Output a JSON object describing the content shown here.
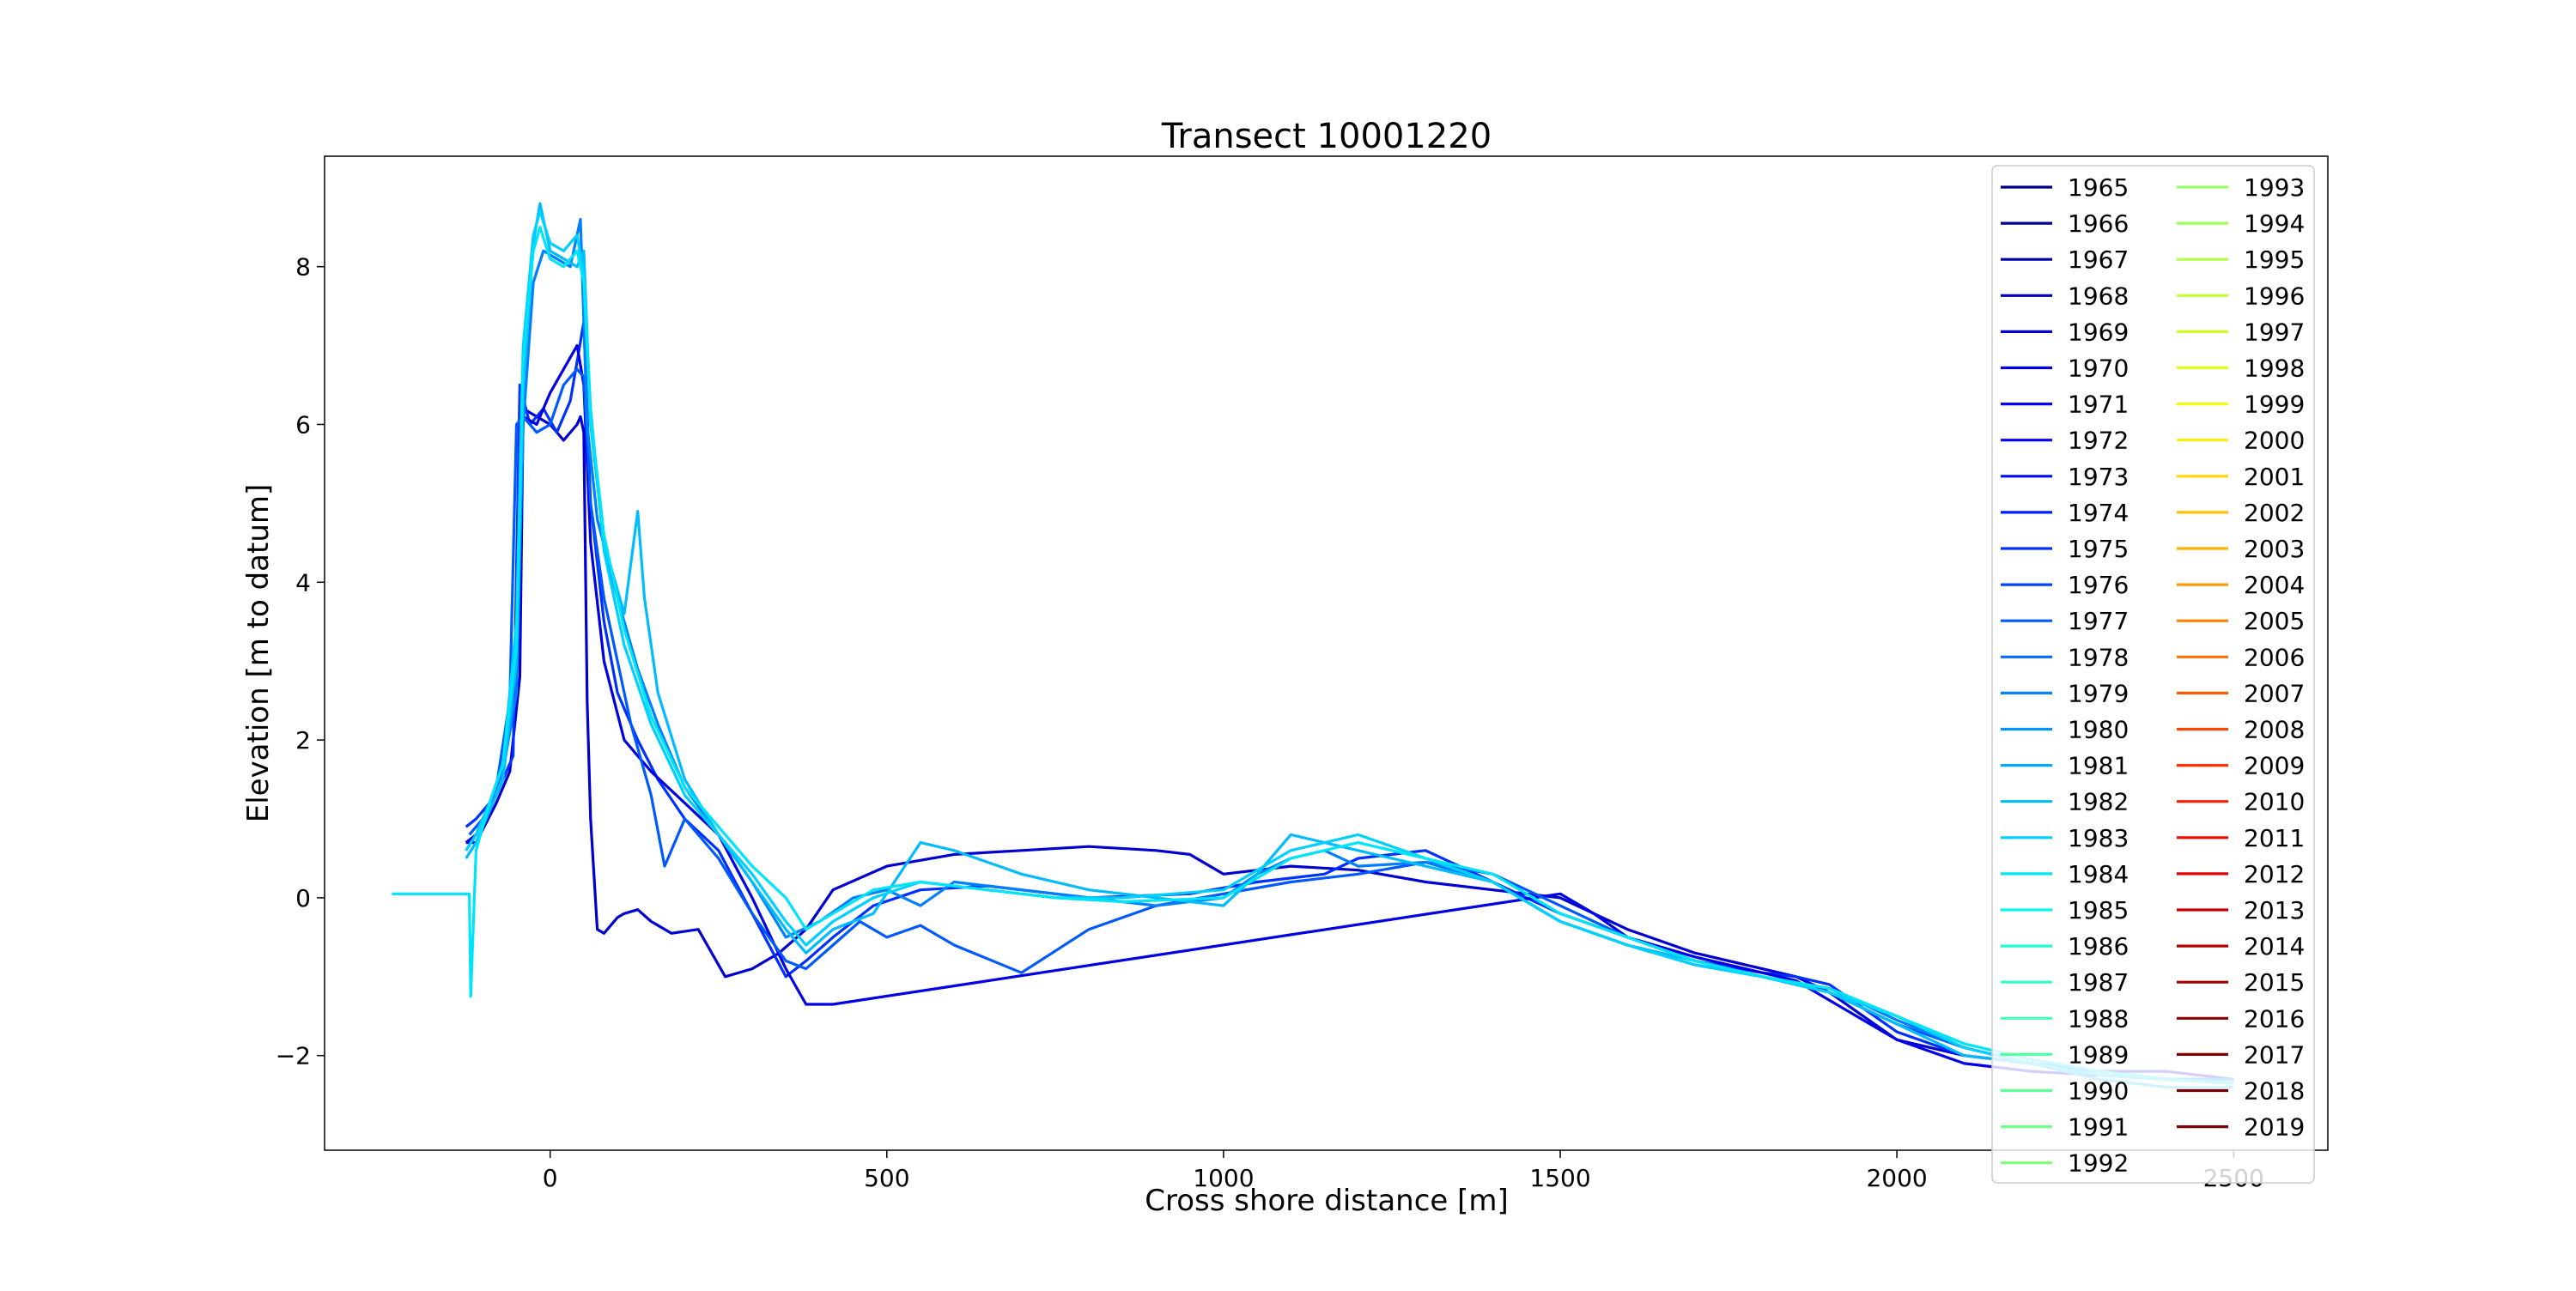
{
  "chart_data": {
    "type": "line",
    "title": "Transect 10001220",
    "xlabel": "Cross shore distance [m]",
    "ylabel": "Elevation [m to datum]",
    "xlim": [
      -335,
      2640
    ],
    "ylim": [
      -3.2,
      9.4
    ],
    "xticks": [
      0,
      500,
      1000,
      1500,
      2000,
      2500
    ],
    "yticks": [
      -2,
      0,
      2,
      4,
      6,
      8
    ],
    "xtick_labels": [
      "0",
      "500",
      "1000",
      "1500",
      "2000",
      "2500"
    ],
    "ytick_labels": [
      "−2",
      "0",
      "2",
      "4",
      "6",
      "8"
    ],
    "grid": false,
    "legend_placement": "upper right",
    "legend_columns": 2,
    "colormap": "jet",
    "legend_years": [
      "1965",
      "1966",
      "1967",
      "1968",
      "1969",
      "1970",
      "1971",
      "1972",
      "1973",
      "1974",
      "1975",
      "1976",
      "1977",
      "1978",
      "1979",
      "1980",
      "1981",
      "1982",
      "1983",
      "1984",
      "1985",
      "1986",
      "1987",
      "1988",
      "1989",
      "1990",
      "1991",
      "1992",
      "1993",
      "1994",
      "1995",
      "1996",
      "1997",
      "1998",
      "1999",
      "2000",
      "2001",
      "2002",
      "2003",
      "2004",
      "2005",
      "2006",
      "2007",
      "2008",
      "2009",
      "2010",
      "2011",
      "2012",
      "2013",
      "2014",
      "2015",
      "2016",
      "2017",
      "2018",
      "2019"
    ],
    "legend_colors": [
      "#00007f",
      "#000093",
      "#0000a7",
      "#0000bb",
      "#0000d0",
      "#0000e4",
      "#0000f8",
      "#0000ff",
      "#0008ff",
      "#001cff",
      "#0030ff",
      "#0044ff",
      "#0058ff",
      "#006cff",
      "#0080ff",
      "#0094ff",
      "#00a8ff",
      "#00bcff",
      "#00d0ff",
      "#00e4f7",
      "#0ff8e7",
      "#22ffd4",
      "#32ffc4",
      "#42ffb4",
      "#51ffa5",
      "#61ff95",
      "#71ff85",
      "#82ff75",
      "#92ff64",
      "#a1ff55",
      "#b1ff45",
      "#c1ff35",
      "#d0ff26",
      "#e0ff16",
      "#f0ff06",
      "#ffee00",
      "#ffd900",
      "#ffc400",
      "#ffb000",
      "#ff9a00",
      "#ff8500",
      "#ff7000",
      "#ff5c00",
      "#ff4700",
      "#ff3200",
      "#ff1e00",
      "#f10900",
      "#dd0000",
      "#c80000",
      "#b40000",
      "#a00000",
      "#8b0000",
      "#7f0000",
      "#750000",
      "#7f0000"
    ],
    "series": [
      {
        "color": "#0000d0",
        "x": [
          -125,
          -110,
          -80,
          -60,
          -45,
          -40,
          -20,
          0,
          20,
          40,
          45,
          50,
          55,
          60,
          70,
          80,
          90,
          100,
          110,
          130,
          150,
          180,
          220,
          260,
          300,
          340,
          380,
          420,
          500,
          600,
          700,
          800,
          900,
          950,
          1000,
          1100,
          1200,
          1300,
          1400,
          1500,
          1550,
          1600,
          1700,
          1800,
          1850,
          1900,
          1950,
          2000,
          2100,
          2200,
          2300,
          2400,
          2500
        ],
        "y": [
          0.7,
          0.7,
          1.2,
          1.6,
          2.8,
          6.2,
          6.1,
          6.0,
          5.8,
          6.0,
          6.1,
          5.9,
          2.5,
          1.0,
          -0.4,
          -0.45,
          -0.35,
          -0.25,
          -0.2,
          -0.15,
          -0.3,
          -0.45,
          -0.4,
          -1.0,
          -0.9,
          -0.7,
          -0.4,
          0.1,
          0.4,
          0.55,
          0.6,
          0.65,
          0.6,
          0.55,
          0.3,
          0.4,
          0.35,
          0.2,
          0.1,
          0.0,
          -0.2,
          -0.4,
          -0.7,
          -0.9,
          -1.0,
          -1.2,
          -1.5,
          -1.8,
          -2.0,
          -2.1,
          -2.2,
          -2.2,
          -2.3
        ]
      },
      {
        "color": "#0030ff",
        "x": [
          -125,
          -110,
          -80,
          -55,
          -45,
          -30,
          -10,
          10,
          30,
          40,
          50,
          60,
          80,
          100,
          130,
          160,
          200,
          250,
          300,
          350,
          380,
          420,
          480,
          550,
          650,
          800,
          950,
          1050,
          1150,
          1200,
          1300,
          1350,
          1400,
          1450,
          1500,
          1600,
          1700,
          1800,
          1850,
          1900,
          1950,
          2000,
          2100,
          2200,
          2300,
          2400,
          2500
        ],
        "y": [
          0.9,
          1.0,
          1.3,
          1.8,
          6.5,
          6.0,
          6.2,
          5.9,
          6.3,
          6.8,
          7.3,
          5.0,
          3.5,
          2.6,
          2.0,
          1.5,
          1.0,
          0.6,
          -0.2,
          -1.0,
          -0.8,
          -0.5,
          -0.1,
          0.1,
          0.15,
          0.0,
          0.05,
          0.2,
          0.3,
          0.5,
          0.6,
          0.4,
          0.2,
          0.0,
          -0.2,
          -0.5,
          -0.8,
          -0.95,
          -1.0,
          -1.1,
          -1.4,
          -1.7,
          -2.0,
          -2.1,
          -2.2,
          -2.3,
          -2.3
        ]
      },
      {
        "color": "#0000e4",
        "x": [
          -125,
          -110,
          -90,
          -70,
          -50,
          -40,
          -20,
          0,
          20,
          40,
          50,
          60,
          80,
          110,
          150,
          200,
          250,
          300,
          350,
          380,
          420,
          1500,
          1550,
          1600,
          1700,
          1800,
          1850,
          1900,
          2000,
          2100,
          2200,
          2300,
          2400,
          2500
        ],
        "y": [
          0.7,
          0.8,
          1.2,
          1.6,
          3.0,
          6.1,
          6.0,
          6.4,
          6.7,
          7.0,
          6.5,
          4.5,
          3.0,
          2.0,
          1.6,
          1.2,
          0.8,
          0.0,
          -0.9,
          -1.35,
          -1.35,
          0.05,
          -0.2,
          -0.5,
          -0.75,
          -0.95,
          -1.05,
          -1.3,
          -1.8,
          -2.1,
          -2.2,
          -2.25,
          -2.3,
          -2.35
        ]
      },
      {
        "color": "#0058ff",
        "x": [
          -120,
          -100,
          -80,
          -60,
          -50,
          -40,
          -20,
          0,
          20,
          40,
          50,
          60,
          80,
          100,
          120,
          150,
          170,
          200,
          250,
          300,
          350,
          380,
          420,
          460,
          500,
          550,
          600,
          700,
          800,
          900,
          1000,
          1100,
          1200,
          1300,
          1400,
          1500,
          1600,
          1700,
          1800,
          1900,
          2000,
          2100,
          2200,
          2300,
          2400,
          2500
        ],
        "y": [
          0.8,
          1.0,
          1.4,
          2.5,
          6.0,
          6.1,
          5.9,
          6.0,
          6.5,
          6.7,
          6.6,
          5.0,
          3.8,
          3.0,
          2.2,
          1.3,
          0.4,
          1.0,
          0.5,
          -0.2,
          -0.8,
          -0.9,
          -0.6,
          -0.3,
          -0.5,
          -0.35,
          -0.6,
          -0.95,
          -0.4,
          -0.1,
          0.05,
          0.2,
          0.3,
          0.45,
          0.3,
          -0.1,
          -0.5,
          -0.8,
          -1.0,
          -1.2,
          -1.6,
          -1.9,
          -2.1,
          -2.2,
          -2.3,
          -2.3
        ]
      },
      {
        "color": "#0080ff",
        "x": [
          -125,
          -110,
          -90,
          -70,
          -50,
          -40,
          -25,
          -10,
          10,
          30,
          45,
          55,
          70,
          100,
          130,
          160,
          200,
          250,
          300,
          350,
          400,
          450,
          500,
          550,
          600,
          700,
          800,
          900,
          1000,
          1050,
          1100,
          1150,
          1200,
          1300,
          1400,
          1500,
          1600,
          1700,
          1800,
          1900,
          2000,
          2100,
          2200,
          2300,
          2400,
          2500
        ],
        "y": [
          0.6,
          0.8,
          1.2,
          1.6,
          2.6,
          6.0,
          7.8,
          8.2,
          8.1,
          8.0,
          8.6,
          6.0,
          4.8,
          3.8,
          2.9,
          2.2,
          1.4,
          0.8,
          0.2,
          -0.5,
          -0.3,
          0.0,
          0.1,
          -0.1,
          0.2,
          0.1,
          0.0,
          -0.1,
          0.0,
          0.3,
          0.5,
          0.6,
          0.4,
          0.45,
          0.2,
          -0.3,
          -0.6,
          -0.85,
          -1.0,
          -1.15,
          -1.55,
          -1.9,
          -2.1,
          -2.2,
          -2.3,
          -2.3
        ]
      },
      {
        "color": "#00bcff",
        "x": [
          -125,
          -110,
          -90,
          -70,
          -50,
          -40,
          -25,
          -15,
          0,
          20,
          40,
          50,
          60,
          80,
          110,
          130,
          140,
          160,
          200,
          250,
          300,
          350,
          380,
          420,
          480,
          550,
          600,
          700,
          800,
          900,
          1000,
          1050,
          1100,
          1150,
          1200,
          1250,
          1300,
          1350,
          1400,
          1500,
          1600,
          1700,
          1800,
          1900,
          2000,
          2100,
          2200,
          2300,
          2400,
          2500
        ],
        "y": [
          0.5,
          0.7,
          1.1,
          1.5,
          3.0,
          6.5,
          8.3,
          8.8,
          8.2,
          8.1,
          8.0,
          8.2,
          6.0,
          4.5,
          3.6,
          4.9,
          3.8,
          2.6,
          1.5,
          0.8,
          0.2,
          -0.4,
          -0.7,
          -0.4,
          -0.2,
          0.7,
          0.6,
          0.3,
          0.1,
          0.0,
          -0.1,
          0.3,
          0.8,
          0.7,
          0.6,
          0.5,
          0.4,
          0.3,
          0.2,
          -0.3,
          -0.6,
          -0.8,
          -1.0,
          -1.2,
          -1.6,
          -2.0,
          -2.1,
          -2.3,
          -2.4,
          -2.4
        ]
      },
      {
        "color": "#00d0ff",
        "x": [
          -125,
          -110,
          -90,
          -70,
          -50,
          -40,
          -25,
          -15,
          0,
          20,
          40,
          50,
          60,
          80,
          110,
          150,
          200,
          250,
          300,
          350,
          380,
          420,
          480,
          550,
          650,
          750,
          850,
          1000,
          1100,
          1200,
          1300,
          1400,
          1500,
          1600,
          1700,
          1800,
          1900,
          2000,
          2100,
          2200,
          2300,
          2400,
          2500
        ],
        "y": [
          0.6,
          0.8,
          1.2,
          1.7,
          3.5,
          7.0,
          8.4,
          8.7,
          8.3,
          8.2,
          8.4,
          7.9,
          6.2,
          4.4,
          3.2,
          2.2,
          1.3,
          0.8,
          0.3,
          -0.3,
          -0.6,
          -0.3,
          0.0,
          0.2,
          0.1,
          0.0,
          0.0,
          0.1,
          0.6,
          0.8,
          0.5,
          0.2,
          -0.3,
          -0.6,
          -0.85,
          -1.0,
          -1.2,
          -1.5,
          -1.9,
          -2.1,
          -2.25,
          -2.3,
          -2.35
        ]
      },
      {
        "color": "#00e4f7",
        "x": [
          -235,
          -120,
          -118,
          -110,
          -90,
          -70,
          -50,
          -40,
          -25,
          -15,
          0,
          20,
          40,
          50,
          60,
          80,
          110,
          150,
          200,
          250,
          300,
          350,
          380,
          420,
          480,
          550,
          650,
          750,
          850,
          1000,
          1100,
          1200,
          1300,
          1400,
          1500,
          1600,
          1700,
          1800,
          1900,
          2000,
          2100,
          2200,
          2300,
          2400,
          2500
        ],
        "y": [
          0.05,
          0.05,
          -1.25,
          0.6,
          1.2,
          1.7,
          3.2,
          6.8,
          8.2,
          8.5,
          8.1,
          8.0,
          8.2,
          7.8,
          6.1,
          4.6,
          3.4,
          2.3,
          1.4,
          0.9,
          0.4,
          0.0,
          -0.4,
          -0.2,
          0.1,
          0.2,
          0.1,
          0.0,
          -0.05,
          0.0,
          0.5,
          0.7,
          0.5,
          0.3,
          -0.2,
          -0.5,
          -0.8,
          -1.0,
          -1.15,
          -1.5,
          -1.85,
          -2.05,
          -2.2,
          -2.3,
          -2.35
        ]
      }
    ]
  }
}
